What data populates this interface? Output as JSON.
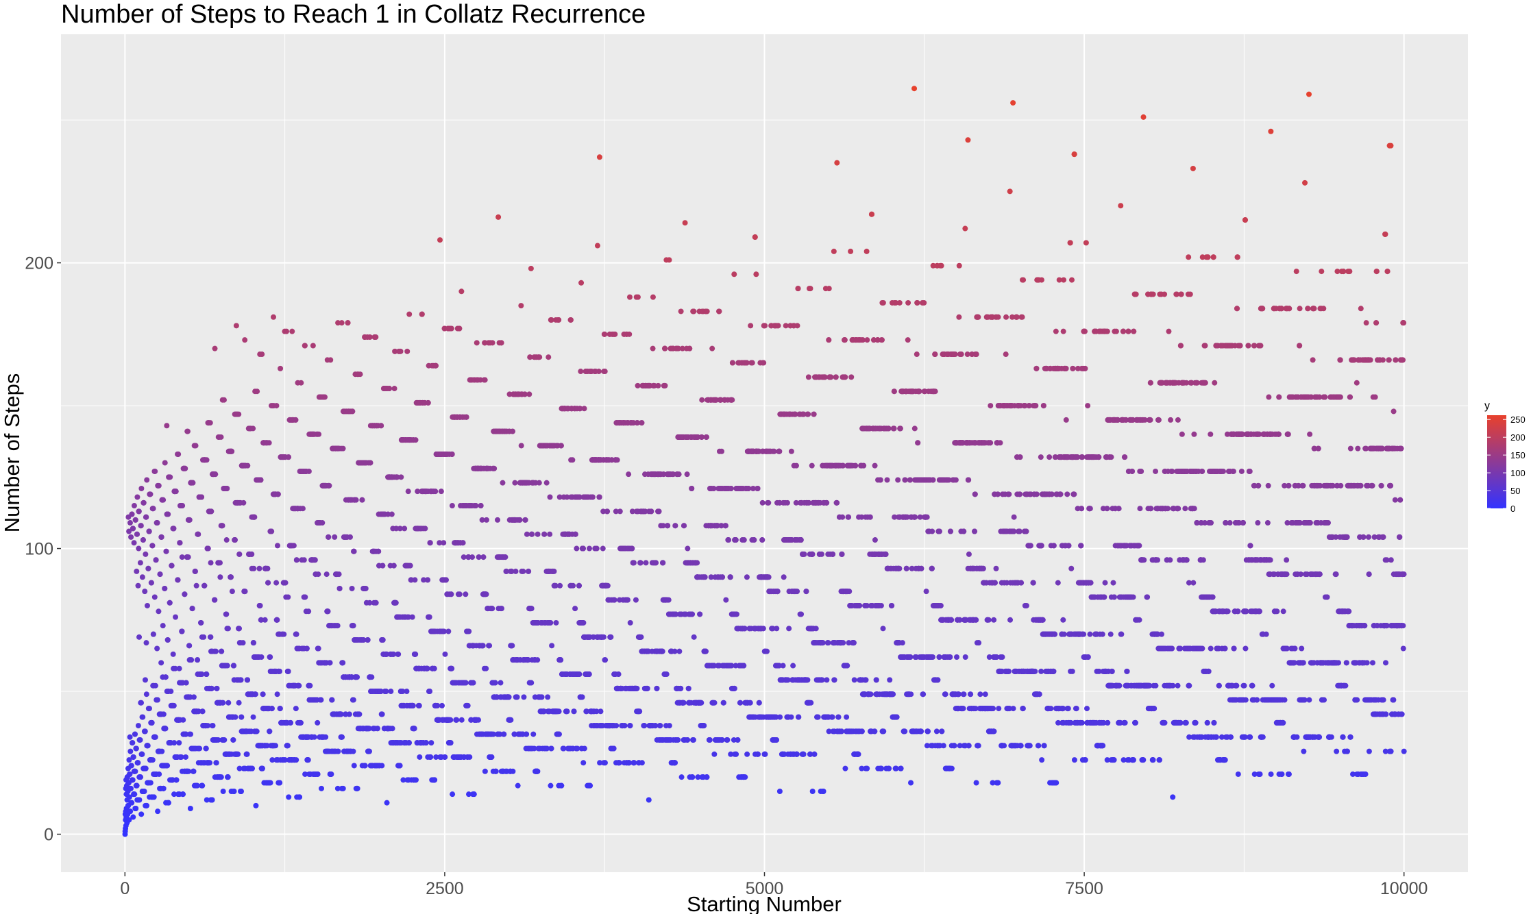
{
  "chart_data": {
    "type": "scatter",
    "title": "Number of Steps to Reach 1 in Collatz Recurrence",
    "xlabel": "Starting Number",
    "ylabel": "Number of Steps",
    "xlim": [
      -500,
      10500
    ],
    "ylim": [
      -13.3,
      280
    ],
    "x_ticks": [
      0,
      2500,
      5000,
      7500,
      10000
    ],
    "x_minor_ticks": [
      1250,
      3750,
      6250,
      8750
    ],
    "y_ticks": [
      0,
      100,
      200
    ],
    "y_minor_ticks": [
      50,
      150,
      250
    ],
    "grid": true,
    "x_range": [
      1,
      10000
    ],
    "y_formula": "number of Collatz steps to reach 1",
    "legend": {
      "title": "y",
      "position": "right",
      "labels": [
        "250",
        "200",
        "150",
        "100",
        "50",
        "0"
      ],
      "values": [
        250,
        200,
        150,
        100,
        50,
        0
      ],
      "color_low": "#3333ff",
      "color_high": "#e8412c",
      "range": [
        0,
        262
      ]
    },
    "colors": {
      "panel_background": "#ebebeb",
      "gridline": "#ffffff",
      "point_low": "#3333ff",
      "point_high": "#e8412c"
    }
  }
}
